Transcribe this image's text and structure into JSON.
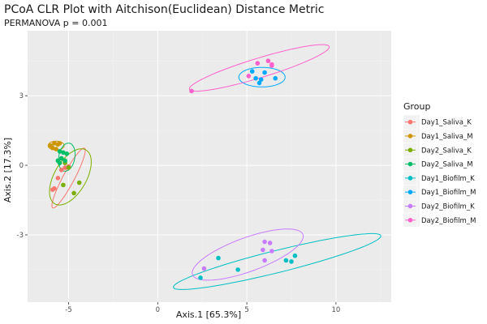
{
  "chart_data": {
    "type": "scatter",
    "title": "PCoA CLR Plot with Aitchison(Euclidean) Distance Metric",
    "subtitle": "PERMANOVA p = 0.001",
    "xlabel": "Axis.1   [65.3%]",
    "ylabel": "Axis.2   [17.3%]",
    "xlim": [
      -7.3,
      13.1
    ],
    "ylim": [
      -5.9,
      5.8
    ],
    "x_ticks": [
      -5,
      0,
      5,
      10
    ],
    "x_tick_labels": [
      "-5",
      "0",
      "5",
      "10"
    ],
    "y_ticks": [
      -3,
      0,
      3
    ],
    "y_tick_labels": [
      "-3",
      "0",
      "3"
    ],
    "legend_title": "Group",
    "grid": true,
    "series": [
      {
        "name": "Day1_Saliva_K",
        "color": "#F8766D",
        "points": [
          [
            -5.8,
            -1.0
          ],
          [
            -5.6,
            -0.55
          ],
          [
            -5.4,
            -0.2
          ],
          [
            -5.2,
            -0.1
          ],
          [
            -5.0,
            -0.05
          ],
          [
            -5.9,
            -1.05
          ]
        ],
        "ellipse": {
          "cx": -5.0,
          "cy": -0.55,
          "rx": 1.9,
          "ry": 0.32,
          "angle": 62
        }
      },
      {
        "name": "Day1_Saliva_M",
        "color": "#CD9600",
        "points": [
          [
            -6.0,
            0.85
          ],
          [
            -5.8,
            0.95
          ],
          [
            -5.6,
            0.9
          ],
          [
            -5.5,
            0.95
          ],
          [
            -5.9,
            0.75
          ],
          [
            -5.7,
            0.7
          ]
        ],
        "ellipse": {
          "cx": -5.7,
          "cy": 0.85,
          "rx": 0.45,
          "ry": 0.25,
          "angle": 0
        }
      },
      {
        "name": "Day2_Saliva_K",
        "color": "#7CAE00",
        "points": [
          [
            -5.0,
            -0.1
          ],
          [
            -5.3,
            -0.85
          ],
          [
            -4.7,
            -1.2
          ],
          [
            -4.4,
            -0.75
          ],
          [
            -5.2,
            0.1
          ]
        ],
        "ellipse": {
          "cx": -4.9,
          "cy": -0.5,
          "rx": 1.75,
          "ry": 0.9,
          "angle": 60
        }
      },
      {
        "name": "Day2_Saliva_M",
        "color": "#00BE67",
        "points": [
          [
            -5.5,
            0.6
          ],
          [
            -5.3,
            0.55
          ],
          [
            -5.1,
            0.5
          ],
          [
            -5.4,
            0.3
          ],
          [
            -5.2,
            0.2
          ],
          [
            -5.6,
            0.2
          ],
          [
            -5.5,
            0.1
          ]
        ],
        "ellipse": {
          "cx": -5.1,
          "cy": 0.35,
          "rx": 0.8,
          "ry": 0.45,
          "angle": 80
        }
      },
      {
        "name": "Day1_Biofilm_K",
        "color": "#00BFC4",
        "points": [
          [
            2.4,
            -4.85
          ],
          [
            3.4,
            -4.0
          ],
          [
            4.5,
            -4.5
          ],
          [
            7.2,
            -4.1
          ],
          [
            7.5,
            -4.15
          ],
          [
            7.7,
            -3.9
          ]
        ],
        "ellipse": {
          "cx": 6.7,
          "cy": -4.15,
          "rx": 6.0,
          "ry": 0.62,
          "angle": 14
        }
      },
      {
        "name": "Day1_Biofilm_M",
        "color": "#00A9FF",
        "points": [
          [
            5.3,
            4.05
          ],
          [
            5.5,
            3.75
          ],
          [
            5.7,
            3.55
          ],
          [
            5.8,
            3.7
          ],
          [
            6.0,
            4.0
          ],
          [
            6.6,
            3.75
          ]
        ],
        "ellipse": {
          "cx": 5.85,
          "cy": 3.8,
          "rx": 1.3,
          "ry": 0.55,
          "angle": 0
        }
      },
      {
        "name": "Day2_Biofilm_K",
        "color": "#C77CFF",
        "points": [
          [
            2.6,
            -4.45
          ],
          [
            6.0,
            -3.3
          ],
          [
            6.3,
            -3.35
          ],
          [
            5.9,
            -3.65
          ],
          [
            6.4,
            -3.7
          ],
          [
            6.0,
            -4.1
          ]
        ],
        "ellipse": {
          "cx": 5.05,
          "cy": -3.85,
          "rx": 3.3,
          "ry": 0.95,
          "angle": 20
        }
      },
      {
        "name": "Day2_Biofilm_M",
        "color": "#FF61CC",
        "points": [
          [
            1.9,
            3.2
          ],
          [
            5.1,
            3.85
          ],
          [
            5.6,
            4.4
          ],
          [
            6.2,
            4.5
          ],
          [
            6.4,
            4.35
          ],
          [
            6.4,
            4.3
          ]
        ],
        "ellipse": {
          "cx": 5.7,
          "cy": 4.2,
          "rx": 4.1,
          "ry": 0.55,
          "angle": 17
        }
      }
    ]
  }
}
